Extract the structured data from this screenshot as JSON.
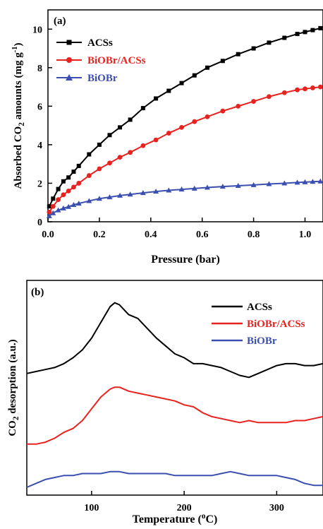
{
  "chart_data": [
    {
      "panel": "(a)",
      "type": "line",
      "xlabel": "Pressure (bar)",
      "ylabel_parts": [
        "Absorbed CO",
        "2",
        " amounts (mg g",
        "-1",
        ")"
      ],
      "xlim": [
        0,
        1.07
      ],
      "ylim": [
        0,
        11
      ],
      "xticks": [
        0.0,
        0.2,
        0.4,
        0.6,
        0.8,
        1.0
      ],
      "xtick_labels": [
        "0.0",
        "0.2",
        "0.4",
        "0.6",
        "0.8",
        "1.0"
      ],
      "yticks": [
        0,
        2,
        4,
        6,
        8,
        10
      ],
      "ytick_labels": [
        "0",
        "2",
        "4",
        "6",
        "8",
        "10"
      ],
      "legend_position": "top-left",
      "series": [
        {
          "name": "ACSs",
          "color": "#000000",
          "marker": "square",
          "x": [
            0.005,
            0.02,
            0.04,
            0.06,
            0.08,
            0.1,
            0.12,
            0.16,
            0.2,
            0.24,
            0.28,
            0.32,
            0.37,
            0.42,
            0.47,
            0.52,
            0.57,
            0.62,
            0.68,
            0.74,
            0.8,
            0.86,
            0.92,
            0.97,
            1.0,
            1.03,
            1.06
          ],
          "y": [
            0.8,
            1.2,
            1.7,
            2.1,
            2.3,
            2.6,
            2.9,
            3.5,
            4.0,
            4.5,
            4.9,
            5.3,
            5.9,
            6.4,
            6.8,
            7.2,
            7.6,
            8.0,
            8.35,
            8.7,
            9.0,
            9.3,
            9.55,
            9.75,
            9.85,
            9.95,
            10.05
          ]
        },
        {
          "name": "BiOBr/ACSs",
          "color": "#e8221f",
          "marker": "circle",
          "x": [
            0.005,
            0.02,
            0.04,
            0.06,
            0.08,
            0.1,
            0.12,
            0.16,
            0.2,
            0.24,
            0.28,
            0.32,
            0.37,
            0.42,
            0.47,
            0.52,
            0.57,
            0.62,
            0.68,
            0.74,
            0.8,
            0.86,
            0.92,
            0.97,
            1.0,
            1.03,
            1.06
          ],
          "y": [
            0.5,
            0.8,
            1.15,
            1.4,
            1.6,
            1.8,
            2.0,
            2.4,
            2.75,
            3.05,
            3.35,
            3.6,
            3.95,
            4.25,
            4.6,
            4.9,
            5.2,
            5.45,
            5.75,
            6.0,
            6.25,
            6.5,
            6.7,
            6.85,
            6.9,
            6.95,
            7.0
          ]
        },
        {
          "name": "BiOBr",
          "color": "#3a4fb0",
          "marker": "triangle",
          "x": [
            0.005,
            0.02,
            0.04,
            0.06,
            0.08,
            0.1,
            0.12,
            0.16,
            0.2,
            0.24,
            0.28,
            0.32,
            0.37,
            0.42,
            0.47,
            0.52,
            0.57,
            0.62,
            0.68,
            0.74,
            0.8,
            0.86,
            0.92,
            0.97,
            1.0,
            1.03,
            1.06
          ],
          "y": [
            0.3,
            0.45,
            0.6,
            0.7,
            0.78,
            0.88,
            0.95,
            1.08,
            1.2,
            1.28,
            1.36,
            1.42,
            1.5,
            1.57,
            1.63,
            1.68,
            1.73,
            1.78,
            1.83,
            1.87,
            1.91,
            1.96,
            2.0,
            2.04,
            2.06,
            2.08,
            2.1
          ]
        }
      ]
    },
    {
      "panel": "(b)",
      "type": "line",
      "xlabel_parts": [
        "Temperature (",
        "o",
        "C)"
      ],
      "ylabel_parts": [
        "CO",
        "2",
        " desorption (a.u.)"
      ],
      "xlim": [
        30,
        350
      ],
      "ylim": [
        0,
        1
      ],
      "xticks": [
        100,
        200,
        300
      ],
      "xtick_labels": [
        "100",
        "200",
        "300"
      ],
      "legend_position": "top-right",
      "series": [
        {
          "name": "ACSs",
          "color": "#000000",
          "x": [
            30,
            40,
            50,
            60,
            70,
            80,
            90,
            100,
            110,
            120,
            125,
            130,
            140,
            150,
            160,
            170,
            180,
            190,
            200,
            210,
            220,
            230,
            240,
            250,
            260,
            270,
            280,
            290,
            300,
            310,
            320,
            330,
            340,
            350
          ],
          "y": [
            0.58,
            0.59,
            0.6,
            0.61,
            0.63,
            0.66,
            0.7,
            0.76,
            0.84,
            0.92,
            0.94,
            0.93,
            0.88,
            0.86,
            0.81,
            0.76,
            0.72,
            0.68,
            0.66,
            0.63,
            0.63,
            0.62,
            0.61,
            0.59,
            0.57,
            0.56,
            0.58,
            0.6,
            0.62,
            0.63,
            0.63,
            0.62,
            0.62,
            0.63
          ]
        },
        {
          "name": "BiOBr/ACSs",
          "color": "#e8221f",
          "x": [
            30,
            40,
            50,
            60,
            70,
            80,
            90,
            100,
            110,
            120,
            125,
            130,
            140,
            150,
            160,
            170,
            180,
            190,
            200,
            210,
            220,
            230,
            240,
            250,
            260,
            270,
            280,
            290,
            300,
            310,
            320,
            330,
            340,
            350
          ],
          "y": [
            0.22,
            0.22,
            0.23,
            0.25,
            0.28,
            0.3,
            0.34,
            0.4,
            0.46,
            0.5,
            0.51,
            0.51,
            0.49,
            0.48,
            0.47,
            0.46,
            0.45,
            0.44,
            0.42,
            0.41,
            0.38,
            0.36,
            0.35,
            0.34,
            0.33,
            0.34,
            0.33,
            0.33,
            0.33,
            0.33,
            0.34,
            0.34,
            0.35,
            0.36
          ]
        },
        {
          "name": "BiOBr",
          "color": "#3a4fb0",
          "x": [
            30,
            40,
            50,
            60,
            70,
            80,
            90,
            100,
            110,
            120,
            125,
            130,
            140,
            150,
            160,
            170,
            180,
            190,
            200,
            210,
            220,
            230,
            240,
            250,
            260,
            270,
            280,
            290,
            300,
            310,
            320,
            330,
            340,
            350
          ],
          "y": [
            0.0,
            0.02,
            0.04,
            0.05,
            0.06,
            0.06,
            0.07,
            0.07,
            0.07,
            0.08,
            0.08,
            0.08,
            0.07,
            0.07,
            0.07,
            0.07,
            0.07,
            0.06,
            0.06,
            0.06,
            0.06,
            0.06,
            0.07,
            0.08,
            0.07,
            0.06,
            0.06,
            0.06,
            0.06,
            0.05,
            0.04,
            0.02,
            0.01,
            0.01
          ]
        }
      ]
    }
  ]
}
